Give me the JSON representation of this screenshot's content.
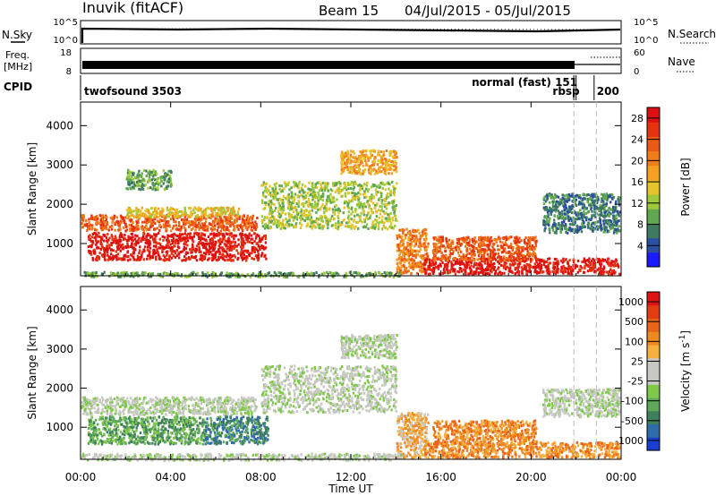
{
  "header": {
    "title": "Inuvik (fitACF)",
    "beam": "Beam 15",
    "date_range": "04/Jul/2015 - 05/Jul/2015"
  },
  "top_strip": {
    "nsky_label": "N.Sky",
    "nsky_ticks": [
      "10^5",
      "10^0"
    ],
    "nsearch_label": "N.Search",
    "nsearch_ticks": [
      "10^5",
      "10^0"
    ],
    "freq_label": "Freq.",
    "freq_unit": "[MHz]",
    "freq_ticks": [
      "18",
      "8"
    ],
    "nave_label": "Nave",
    "nave_ticks": [
      "60",
      "0"
    ],
    "cpid_label": "CPID",
    "cpid_segments": [
      {
        "name": "twofsound 3503",
        "start_hour": 0,
        "end_hour": 21.9
      },
      {
        "name": "normal (fast) 151",
        "start_hour": 21.9,
        "end_hour": 22.0
      },
      {
        "name": "rbsp",
        "start_hour": 22.0,
        "end_hour": 22.8
      },
      {
        "name": "200",
        "start_hour": 22.8,
        "end_hour": 24.0
      }
    ]
  },
  "chart_data": [
    {
      "type": "heatmap",
      "title": "",
      "xlabel": "Time UT",
      "ylabel": "Slant Range [km]",
      "xlim": [
        0,
        24
      ],
      "ylim": [
        180,
        4600
      ],
      "x_ticks": [
        "00:00",
        "04:00",
        "08:00",
        "12:00",
        "16:00",
        "20:00",
        "00:00"
      ],
      "y_ticks": [
        1000,
        2000,
        3000,
        4000
      ],
      "colorbar": {
        "label": "Power [dB]",
        "ticks": [
          "4",
          "8",
          "12",
          "16",
          "20",
          "24",
          "28"
        ],
        "colors": [
          "#1a1aff",
          "#2a4fa0",
          "#3d7a5f",
          "#5fa850",
          "#9dc93a",
          "#e6c32a",
          "#f5a020",
          "#f07d1a",
          "#ea5a14",
          "#e6320f",
          "#dd1010"
        ]
      },
      "regions": [
        {
          "t0": 0.0,
          "t1": 7.8,
          "r0": 1350,
          "r1": 1750,
          "level": 8
        },
        {
          "t0": 0.3,
          "t1": 8.2,
          "r0": 600,
          "r1": 1300,
          "level": 10
        },
        {
          "t0": 2.0,
          "t1": 7.0,
          "r0": 1700,
          "r1": 1950,
          "level": 5
        },
        {
          "t0": 2.0,
          "t1": 4.0,
          "r0": 2400,
          "r1": 2900,
          "level": 3
        },
        {
          "t0": 8.0,
          "t1": 14.0,
          "r0": 1400,
          "r1": 2600,
          "level": 4
        },
        {
          "t0": 11.5,
          "t1": 14.0,
          "r0": 2800,
          "r1": 3400,
          "level": 6
        },
        {
          "t0": 14.0,
          "t1": 15.4,
          "r0": 250,
          "r1": 1400,
          "level": 7
        },
        {
          "t0": 15.2,
          "t1": 23.9,
          "r0": 250,
          "r1": 650,
          "level": 10
        },
        {
          "t0": 15.6,
          "t1": 20.2,
          "r0": 600,
          "r1": 1200,
          "level": 8
        },
        {
          "t0": 20.5,
          "t1": 23.9,
          "r0": 1300,
          "r1": 2300,
          "level": 2
        },
        {
          "t0": 0.0,
          "t1": 14.2,
          "r0": 180,
          "r1": 300,
          "level": 3
        }
      ]
    },
    {
      "type": "heatmap",
      "title": "",
      "xlabel": "Time UT",
      "ylabel": "Slant Range [km]",
      "xlim": [
        0,
        24
      ],
      "ylim": [
        180,
        4600
      ],
      "x_ticks": [
        "00:00",
        "04:00",
        "08:00",
        "12:00",
        "16:00",
        "20:00",
        "00:00"
      ],
      "y_ticks": [
        1000,
        2000,
        3000,
        4000
      ],
      "colorbar": {
        "label": "Velocity [m s^-1]",
        "ticks": [
          "1000",
          "500",
          "100",
          "25",
          "-25",
          "-100",
          "-500",
          "-1000"
        ],
        "colors": [
          "#1a3fd0",
          "#2f6cab",
          "#3f7f5c",
          "#5ea85a",
          "#7fc94a",
          "#c8c8c3",
          "#c8c8c3",
          "#f5b040",
          "#f08a20",
          "#e86418",
          "#e23c12",
          "#dd1414"
        ]
      },
      "regions": [
        {
          "t0": 0.0,
          "t1": 7.8,
          "r0": 1350,
          "r1": 1800,
          "level": 5
        },
        {
          "t0": 0.3,
          "t1": 5.5,
          "r0": 600,
          "r1": 1300,
          "level": 3
        },
        {
          "t0": 5.5,
          "t1": 8.3,
          "r0": 600,
          "r1": 1300,
          "level": 2
        },
        {
          "t0": 8.0,
          "t1": 14.0,
          "r0": 1400,
          "r1": 2600,
          "level": 5
        },
        {
          "t0": 11.5,
          "t1": 14.0,
          "r0": 2800,
          "r1": 3400,
          "level": 5
        },
        {
          "t0": 14.0,
          "t1": 15.4,
          "r0": 250,
          "r1": 1400,
          "level": 7
        },
        {
          "t0": 15.2,
          "t1": 23.9,
          "r0": 250,
          "r1": 650,
          "level": 8
        },
        {
          "t0": 15.6,
          "t1": 20.2,
          "r0": 600,
          "r1": 1200,
          "level": 8
        },
        {
          "t0": 20.5,
          "t1": 23.9,
          "r0": 1300,
          "r1": 2000,
          "level": 5
        },
        {
          "t0": 0.0,
          "t1": 14.2,
          "r0": 180,
          "r1": 350,
          "level": 5
        }
      ]
    }
  ]
}
